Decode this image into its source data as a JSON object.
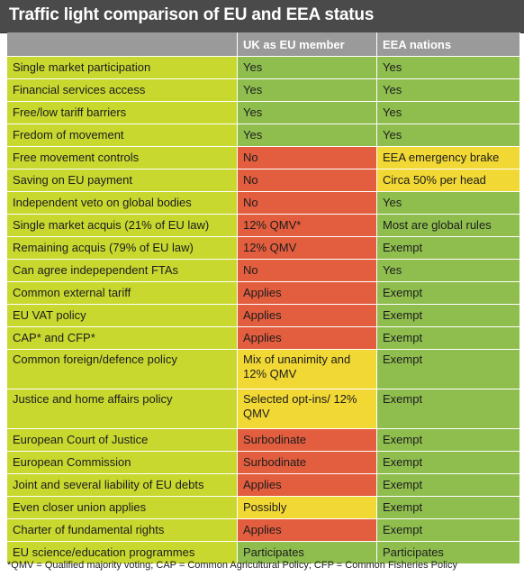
{
  "title": "Traffic light comparison of EU and EEA status",
  "headers": [
    "",
    "UK as EU member",
    "EEA nations"
  ],
  "colors": {
    "title_bg": "#4a4a4a",
    "header_bg": "#9a9a9a",
    "label_bg": "#c8d82f",
    "green": "#8fbe4f",
    "red": "#e35e3f",
    "yellow": "#f2d834"
  },
  "rows": [
    {
      "label": "Single market participation",
      "uk": "Yes",
      "uk_status": "green",
      "eea": "Yes",
      "eea_status": "green"
    },
    {
      "label": "Financial services access",
      "uk": "Yes",
      "uk_status": "green",
      "eea": "Yes",
      "eea_status": "green"
    },
    {
      "label": "Free/low tariff barriers",
      "uk": "Yes",
      "uk_status": "green",
      "eea": "Yes",
      "eea_status": "green"
    },
    {
      "label": "Fredom of movement",
      "uk": "Yes",
      "uk_status": "green",
      "eea": "Yes",
      "eea_status": "green"
    },
    {
      "label": "Free movement controls",
      "uk": "No",
      "uk_status": "red",
      "eea": "EEA emergency brake",
      "eea_status": "yellow"
    },
    {
      "label": "Saving on EU payment",
      "uk": "No",
      "uk_status": "red",
      "eea": "Circa 50% per head",
      "eea_status": "yellow"
    },
    {
      "label": "Independent veto on global bodies",
      "uk": "No",
      "uk_status": "red",
      "eea": "Yes",
      "eea_status": "green"
    },
    {
      "label": "Single market acquis (21% of EU law)",
      "uk": "12% QMV*",
      "uk_status": "red",
      "eea": "Most are global rules",
      "eea_status": "green"
    },
    {
      "label": "Remaining acquis (79% of EU law)",
      "uk": "12% QMV",
      "uk_status": "red",
      "eea": "Exempt",
      "eea_status": "green"
    },
    {
      "label": "Can agree indepependent FTAs",
      "uk": "No",
      "uk_status": "red",
      "eea": "Yes",
      "eea_status": "green"
    },
    {
      "label": "Common external tariff",
      "uk": "Applies",
      "uk_status": "red",
      "eea": "Exempt",
      "eea_status": "green"
    },
    {
      "label": "EU VAT policy",
      "uk": "Applies",
      "uk_status": "red",
      "eea": "Exempt",
      "eea_status": "green"
    },
    {
      "label": "CAP* and CFP*",
      "uk": "Applies",
      "uk_status": "red",
      "eea": "Exempt",
      "eea_status": "green"
    },
    {
      "label": "Common foreign/defence policy",
      "uk": "Mix of unanimity and 12% QMV",
      "uk_status": "yellow",
      "eea": "Exempt",
      "eea_status": "green",
      "tall": true
    },
    {
      "label": "Justice and home affairs policy",
      "uk": "Selected opt-ins/ 12% QMV",
      "uk_status": "yellow",
      "eea": "Exempt",
      "eea_status": "green",
      "tall": true
    },
    {
      "label": "European Court of Justice",
      "uk": "Surbodinate",
      "uk_status": "red",
      "eea": "Exempt",
      "eea_status": "green"
    },
    {
      "label": "European Commission",
      "uk": "Surbodinate",
      "uk_status": "red",
      "eea": "Exempt",
      "eea_status": "green"
    },
    {
      "label": "Joint and several liability of EU debts",
      "uk": "Applies",
      "uk_status": "red",
      "eea": "Exempt",
      "eea_status": "green"
    },
    {
      "label": "Even closer union applies",
      "uk": "Possibly",
      "uk_status": "yellow",
      "eea": "Exempt",
      "eea_status": "green"
    },
    {
      "label": "Charter of fundamental rights",
      "uk": "Applies",
      "uk_status": "red",
      "eea": "Exempt",
      "eea_status": "green"
    },
    {
      "label": "EU science/education programmes",
      "uk": "Participates",
      "uk_status": "green",
      "eea": "Participates",
      "eea_status": "green"
    }
  ],
  "footnote": "*QMV = Qualified majority voting; CAP = Common Agricultural Policy; CFP = Common Fisheries Policy"
}
